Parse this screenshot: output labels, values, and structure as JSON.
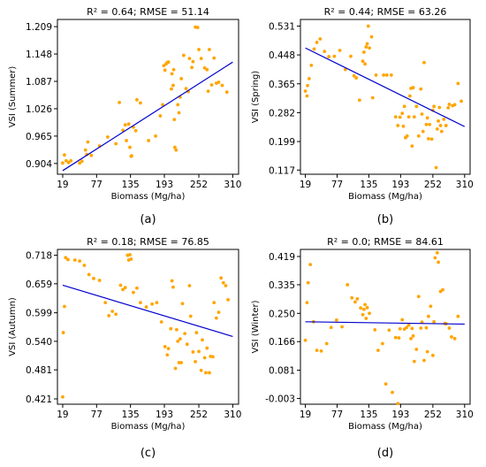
{
  "colors": {
    "points": "#ffa500",
    "fit_line": "#0000cd"
  },
  "chart_data": [
    {
      "type": "scatter",
      "panel_label": "(a)",
      "title": "R² = 0.64; RMSE = 51.14",
      "xlabel": "Biomass (Mg/ha)",
      "ylabel": "VSI (Summer)",
      "xticks": [
        19,
        77,
        135,
        193,
        252,
        310
      ],
      "yticks": [
        0.904,
        0.965,
        1.026,
        1.087,
        1.148,
        1.209
      ],
      "xlim": [
        10,
        320
      ],
      "ylim": [
        0.88,
        1.225
      ],
      "fit_line": {
        "x": [
          19,
          310
        ],
        "y": [
          0.888,
          1.13
        ]
      },
      "points": [
        [
          19,
          0.905
        ],
        [
          22,
          0.923
        ],
        [
          25,
          0.91
        ],
        [
          29,
          0.906
        ],
        [
          33,
          0.91
        ],
        [
          48,
          0.905
        ],
        [
          52,
          0.909
        ],
        [
          58,
          0.934
        ],
        [
          60,
          0.924
        ],
        [
          62,
          0.952
        ],
        [
          68,
          0.922
        ],
        [
          82,
          0.943
        ],
        [
          96,
          0.963
        ],
        [
          110,
          0.948
        ],
        [
          116,
          1.04
        ],
        [
          122,
          0.978
        ],
        [
          126,
          0.99
        ],
        [
          128,
          0.955
        ],
        [
          132,
          0.992
        ],
        [
          134,
          0.94
        ],
        [
          136,
          0.92
        ],
        [
          137,
          0.921
        ],
        [
          140,
          0.985
        ],
        [
          144,
          0.977
        ],
        [
          146,
          1.046
        ],
        [
          152,
          1.039
        ],
        [
          166,
          0.955
        ],
        [
          178,
          0.965
        ],
        [
          186,
          1.01
        ],
        [
          190,
          1.035
        ],
        [
          192,
          1.122
        ],
        [
          194,
          1.112
        ],
        [
          196,
          1.126
        ],
        [
          198,
          1.129
        ],
        [
          200,
          1.13
        ],
        [
          205,
          1.07
        ],
        [
          206,
          1.104
        ],
        [
          208,
          1.078
        ],
        [
          209,
          1.113
        ],
        [
          210,
          1.002
        ],
        [
          211,
          0.94
        ],
        [
          213,
          0.934
        ],
        [
          216,
          1.035
        ],
        [
          218,
          1.017
        ],
        [
          220,
          1.052
        ],
        [
          222,
          1.093
        ],
        [
          226,
          1.145
        ],
        [
          230,
          1.071
        ],
        [
          234,
          1.064
        ],
        [
          236,
          1.138
        ],
        [
          240,
          1.118
        ],
        [
          242,
          1.131
        ],
        [
          246,
          1.208
        ],
        [
          250,
          1.207
        ],
        [
          252,
          1.158
        ],
        [
          256,
          1.138
        ],
        [
          262,
          1.117
        ],
        [
          266,
          1.113
        ],
        [
          268,
          1.065
        ],
        [
          270,
          1.158
        ],
        [
          274,
          1.079
        ],
        [
          278,
          1.139
        ],
        [
          282,
          1.083
        ],
        [
          286,
          1.085
        ],
        [
          292,
          1.078
        ],
        [
          300,
          1.063
        ]
      ]
    },
    {
      "type": "scatter",
      "panel_label": "(b)",
      "title": "R² = 0.44; RMSE = 63.26",
      "xlabel": "Biomass (Mg/ha)",
      "ylabel": "VSI (Spring)",
      "xticks": [
        19,
        77,
        135,
        193,
        252,
        310
      ],
      "yticks": [
        0.117,
        0.199,
        0.282,
        0.365,
        0.448,
        0.531
      ],
      "xlim": [
        10,
        320
      ],
      "ylim": [
        0.105,
        0.55
      ],
      "fit_line": {
        "x": [
          19,
          310
        ],
        "y": [
          0.468,
          0.242
        ]
      },
      "points": [
        [
          19,
          0.344
        ],
        [
          22,
          0.33
        ],
        [
          23,
          0.36
        ],
        [
          26,
          0.38
        ],
        [
          30,
          0.418
        ],
        [
          35,
          0.465
        ],
        [
          40,
          0.484
        ],
        [
          46,
          0.494
        ],
        [
          54,
          0.458
        ],
        [
          62,
          0.443
        ],
        [
          72,
          0.444
        ],
        [
          82,
          0.461
        ],
        [
          92,
          0.406
        ],
        [
          102,
          0.444
        ],
        [
          108,
          0.388
        ],
        [
          112,
          0.382
        ],
        [
          118,
          0.318
        ],
        [
          124,
          0.43
        ],
        [
          126,
          0.456
        ],
        [
          128,
          0.422
        ],
        [
          130,
          0.471
        ],
        [
          132,
          0.48
        ],
        [
          134,
          0.531
        ],
        [
          136,
          0.468
        ],
        [
          140,
          0.5
        ],
        [
          142,
          0.325
        ],
        [
          148,
          0.39
        ],
        [
          162,
          0.39
        ],
        [
          168,
          0.39
        ],
        [
          176,
          0.39
        ],
        [
          184,
          0.27
        ],
        [
          188,
          0.245
        ],
        [
          192,
          0.269
        ],
        [
          196,
          0.28
        ],
        [
          198,
          0.243
        ],
        [
          200,
          0.3
        ],
        [
          202,
          0.21
        ],
        [
          205,
          0.215
        ],
        [
          208,
          0.27
        ],
        [
          210,
          0.33
        ],
        [
          212,
          0.352
        ],
        [
          214,
          0.186
        ],
        [
          216,
          0.354
        ],
        [
          218,
          0.27
        ],
        [
          222,
          0.3
        ],
        [
          226,
          0.215
        ],
        [
          230,
          0.35
        ],
        [
          232,
          0.278
        ],
        [
          234,
          0.228
        ],
        [
          236,
          0.426
        ],
        [
          240,
          0.248
        ],
        [
          242,
          0.267
        ],
        [
          244,
          0.207
        ],
        [
          246,
          0.248
        ],
        [
          250,
          0.206
        ],
        [
          252,
          0.289
        ],
        [
          254,
          0.3
        ],
        [
          258,
          0.124
        ],
        [
          260,
          0.235
        ],
        [
          262,
          0.258
        ],
        [
          264,
          0.297
        ],
        [
          266,
          0.245
        ],
        [
          268,
          0.228
        ],
        [
          272,
          0.263
        ],
        [
          276,
          0.245
        ],
        [
          280,
          0.296
        ],
        [
          282,
          0.306
        ],
        [
          288,
          0.302
        ],
        [
          292,
          0.305
        ],
        [
          298,
          0.366
        ],
        [
          304,
          0.315
        ]
      ]
    },
    {
      "type": "scatter",
      "panel_label": "(c)",
      "title": "R² = 0.18; RMSE = 76.85",
      "xlabel": "Biomass (Mg/ha)",
      "ylabel": "VSI (Autumn)",
      "xticks": [
        19,
        77,
        135,
        193,
        252,
        310
      ],
      "yticks": [
        0.421,
        0.481,
        0.54,
        0.599,
        0.659,
        0.718
      ],
      "xlim": [
        10,
        320
      ],
      "ylim": [
        0.41,
        0.73
      ],
      "fit_line": {
        "x": [
          19,
          310
        ],
        "y": [
          0.656,
          0.55
        ]
      },
      "points": [
        [
          19,
          0.425
        ],
        [
          20,
          0.558
        ],
        [
          22,
          0.612
        ],
        [
          24,
          0.713
        ],
        [
          28,
          0.709
        ],
        [
          40,
          0.708
        ],
        [
          48,
          0.706
        ],
        [
          56,
          0.697
        ],
        [
          64,
          0.678
        ],
        [
          72,
          0.67
        ],
        [
          82,
          0.666
        ],
        [
          92,
          0.62
        ],
        [
          98,
          0.593
        ],
        [
          104,
          0.602
        ],
        [
          110,
          0.596
        ],
        [
          118,
          0.656
        ],
        [
          122,
          0.647
        ],
        [
          126,
          0.651
        ],
        [
          130,
          0.718
        ],
        [
          132,
          0.708
        ],
        [
          134,
          0.719
        ],
        [
          136,
          0.71
        ],
        [
          140,
          0.641
        ],
        [
          146,
          0.65
        ],
        [
          152,
          0.62
        ],
        [
          162,
          0.611
        ],
        [
          172,
          0.617
        ],
        [
          180,
          0.62
        ],
        [
          188,
          0.58
        ],
        [
          194,
          0.529
        ],
        [
          198,
          0.512
        ],
        [
          200,
          0.525
        ],
        [
          204,
          0.566
        ],
        [
          206,
          0.665
        ],
        [
          208,
          0.652
        ],
        [
          212,
          0.484
        ],
        [
          214,
          0.564
        ],
        [
          216,
          0.54
        ],
        [
          218,
          0.496
        ],
        [
          220,
          0.545
        ],
        [
          222,
          0.496
        ],
        [
          224,
          0.618
        ],
        [
          228,
          0.556
        ],
        [
          232,
          0.534
        ],
        [
          236,
          0.655
        ],
        [
          238,
          0.592
        ],
        [
          242,
          0.518
        ],
        [
          246,
          0.498
        ],
        [
          248,
          0.558
        ],
        [
          252,
          0.519
        ],
        [
          256,
          0.48
        ],
        [
          258,
          0.543
        ],
        [
          262,
          0.506
        ],
        [
          264,
          0.475
        ],
        [
          266,
          0.526
        ],
        [
          270,
          0.475
        ],
        [
          272,
          0.509
        ],
        [
          276,
          0.508
        ],
        [
          278,
          0.62
        ],
        [
          282,
          0.588
        ],
        [
          286,
          0.6
        ],
        [
          290,
          0.671
        ],
        [
          294,
          0.661
        ],
        [
          298,
          0.655
        ],
        [
          302,
          0.626
        ]
      ]
    },
    {
      "type": "scatter",
      "panel_label": "(d)",
      "title": "R² = 0.0; RMSE = 84.61",
      "xlabel": "Biomass (Mg/ha)",
      "ylabel": "VSI (Winter)",
      "xticks": [
        19,
        77,
        135,
        193,
        252,
        310
      ],
      "yticks": [
        -0.003,
        0.081,
        0.166,
        0.25,
        0.335,
        0.419
      ],
      "xlim": [
        10,
        320
      ],
      "ylim": [
        -0.02,
        0.44
      ],
      "fit_line": {
        "x": [
          19,
          310
        ],
        "y": [
          0.225,
          0.218
        ]
      },
      "points": [
        [
          19,
          0.17
        ],
        [
          22,
          0.282
        ],
        [
          24,
          0.341
        ],
        [
          28,
          0.395
        ],
        [
          34,
          0.225
        ],
        [
          40,
          0.14
        ],
        [
          48,
          0.138
        ],
        [
          58,
          0.16
        ],
        [
          66,
          0.208
        ],
        [
          76,
          0.23
        ],
        [
          86,
          0.21
        ],
        [
          96,
          0.335
        ],
        [
          104,
          0.296
        ],
        [
          110,
          0.284
        ],
        [
          114,
          0.293
        ],
        [
          120,
          0.266
        ],
        [
          124,
          0.246
        ],
        [
          126,
          0.262
        ],
        [
          128,
          0.276
        ],
        [
          130,
          0.235
        ],
        [
          132,
          0.267
        ],
        [
          136,
          0.25
        ],
        [
          146,
          0.201
        ],
        [
          152,
          0.14
        ],
        [
          160,
          0.16
        ],
        [
          166,
          0.04
        ],
        [
          172,
          0.2
        ],
        [
          178,
          0.015
        ],
        [
          184,
          0.178
        ],
        [
          188,
          -0.018
        ],
        [
          190,
          0.177
        ],
        [
          192,
          0.204
        ],
        [
          196,
          0.231
        ],
        [
          200,
          0.203
        ],
        [
          204,
          0.208
        ],
        [
          208,
          0.215
        ],
        [
          212,
          0.175
        ],
        [
          214,
          0.205
        ],
        [
          216,
          0.183
        ],
        [
          218,
          0.107
        ],
        [
          222,
          0.143
        ],
        [
          226,
          0.3
        ],
        [
          230,
          0.206
        ],
        [
          232,
          0.224
        ],
        [
          236,
          0.11
        ],
        [
          240,
          0.207
        ],
        [
          242,
          0.136
        ],
        [
          244,
          0.241
        ],
        [
          248,
          0.271
        ],
        [
          252,
          0.125
        ],
        [
          254,
          0.225
        ],
        [
          256,
          0.415
        ],
        [
          260,
          0.43
        ],
        [
          262,
          0.402
        ],
        [
          266,
          0.315
        ],
        [
          270,
          0.32
        ],
        [
          274,
          0.22
        ],
        [
          276,
          0.219
        ],
        [
          282,
          0.206
        ],
        [
          286,
          0.18
        ],
        [
          292,
          0.175
        ],
        [
          298,
          0.241
        ]
      ]
    }
  ]
}
